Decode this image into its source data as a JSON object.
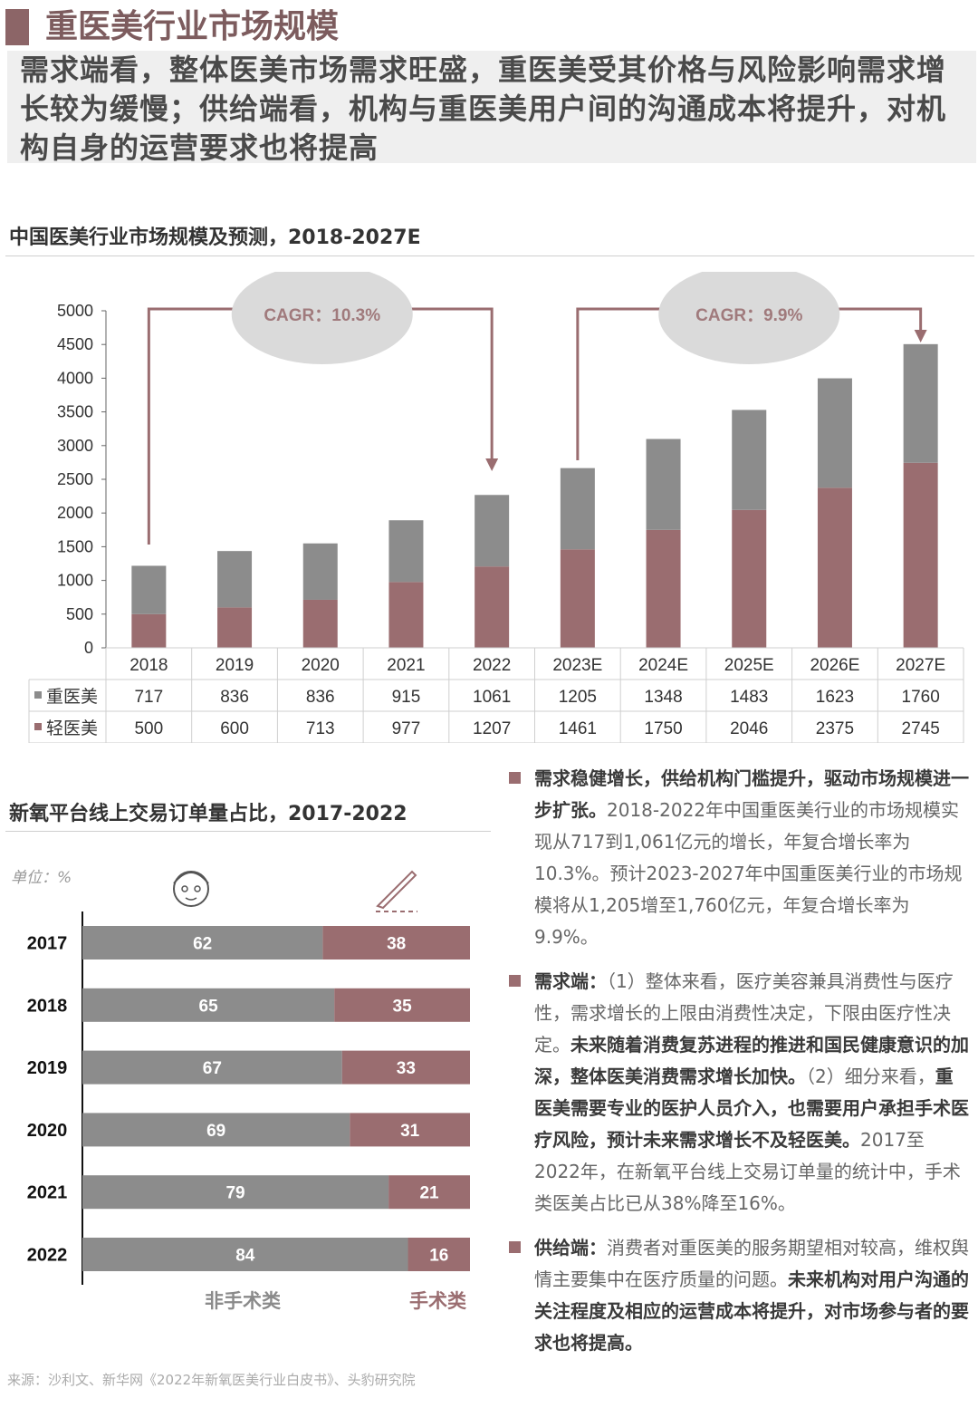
{
  "page": {
    "title": "重医美行业市场规模",
    "summary": "需求端看，整体医美市场需求旺盛，重医美受其价格与风险影响需求增长较为缓慢；供给端看，机构与重医美用户间的沟通成本将提升，对机构自身的运营要求也将提高"
  },
  "colors": {
    "heavy": "#8c8c8c",
    "light": "#9a6d70",
    "accent": "#8c6567",
    "arrow": "#9a6d70",
    "ellipse": "#dadada"
  },
  "chart_data": [
    {
      "type": "bar",
      "stacked": true,
      "title": "中国医美行业市场规模及预测，2018-2027E",
      "categories": [
        "2018",
        "2019",
        "2020",
        "2021",
        "2022",
        "2023E",
        "2024E",
        "2025E",
        "2026E",
        "2027E"
      ],
      "series": [
        {
          "name": "轻医美",
          "color": "#9a6d70",
          "values": [
            500,
            600,
            713,
            977,
            1207,
            1461,
            1750,
            2046,
            2375,
            2745
          ]
        },
        {
          "name": "重医美",
          "color": "#8c8c8c",
          "values": [
            717,
            836,
            836,
            915,
            1061,
            1205,
            1348,
            1483,
            1623,
            1760
          ]
        }
      ],
      "table_rows": [
        {
          "label": "重医美",
          "values": [
            "717",
            "836",
            "836",
            "915",
            "1061",
            "1205",
            "1348",
            "1483",
            "1623",
            "1760"
          ]
        },
        {
          "label": "轻医美",
          "values": [
            "500",
            "600",
            "713",
            "977",
            "1207",
            "1461",
            "1750",
            "2046",
            "2375",
            "2745"
          ]
        }
      ],
      "y_ticks": [
        "0",
        "500",
        "1000",
        "1500",
        "2000",
        "2500",
        "3000",
        "3500",
        "4000",
        "4500",
        "5000"
      ],
      "ylim": [
        0,
        5000
      ],
      "annotations": [
        {
          "text": "CAGR：10.3%",
          "from": "2018",
          "to": "2022"
        },
        {
          "text": "CAGR：9.9%",
          "from": "2023E",
          "to": "2027E"
        }
      ],
      "grid": false
    },
    {
      "type": "bar",
      "stacked": true,
      "orientation": "horizontal",
      "percent": true,
      "title": "新氧平台线上交易订单量占比，2017-2022",
      "unit": "单位：%",
      "categories": [
        "2017",
        "2018",
        "2019",
        "2020",
        "2021",
        "2022"
      ],
      "series": [
        {
          "name": "非手术类",
          "color": "#8c8c8c",
          "values": [
            62,
            65,
            67,
            69,
            79,
            84
          ]
        },
        {
          "name": "手术类",
          "color": "#9a6d70",
          "values": [
            38,
            35,
            33,
            31,
            21,
            16
          ]
        }
      ],
      "xlim": [
        0,
        100
      ]
    }
  ],
  "labels": {
    "unit": "单位：%",
    "non_surgical": "非手术类",
    "surgical": "手术类"
  },
  "icons": {
    "non_surgical": "face-mask-icon",
    "surgical": "scalpel-icon"
  },
  "bullets": [
    {
      "bold": "需求稳健增长，供给机构门槛提升，驱动市场规模进一步扩张。",
      "text": "2018-2022年中国重医美行业的市场规模实现从717到1,061亿元的增长，年复合增长率为10.3%。预计2023-2027年中国重医美行业的市场规模将从1,205增至1,760亿元，年复合增长率为9.9%。"
    },
    {
      "bold_lead": "需求端：",
      "text1": "（1）整体来看，医疗美容兼具消费性与医疗性，需求增长的上限由消费性决定，下限由医疗性决定。",
      "bold1": "未来随着消费复苏进程的推进和国民健康意识的加深，整体医美消费需求增长加快。",
      "text2": "（2）细分来看，",
      "bold2": "重医美需要专业的医护人员介入，也需要用户承担手术医疗风险，预计未来需求增长不及轻医美。",
      "text3": "2017至2022年，在新氧平台线上交易订单量的统计中，手术类医美占比已从38%降至16%。"
    },
    {
      "bold_lead": "供给端：",
      "text1": "消费者对重医美的服务期望相对较高，维权舆情主要集中在医疗质量的问题。",
      "bold1": "未来机构对用户沟通的关注程度及相应的运营成本将提升，对市场参与者的要求也将提高。"
    }
  ],
  "source": "来源：沙利文、新华网《2022年新氧医美行业白皮书》、头豹研究院"
}
